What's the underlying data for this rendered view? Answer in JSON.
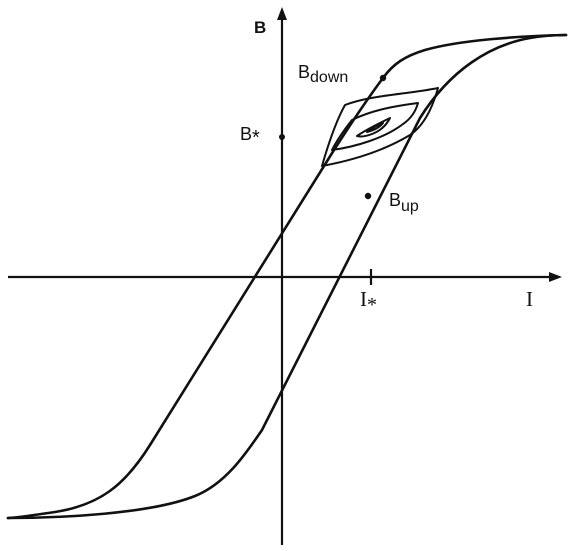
{
  "figure": {
    "axis_y_label": "B",
    "axis_x_label": "I",
    "label_b_down": {
      "main": "B",
      "sub": "down"
    },
    "label_b_up": {
      "main": "B",
      "sub": "up"
    },
    "label_b_star": "B",
    "label_i_star": "I",
    "star_mark": "*"
  }
}
